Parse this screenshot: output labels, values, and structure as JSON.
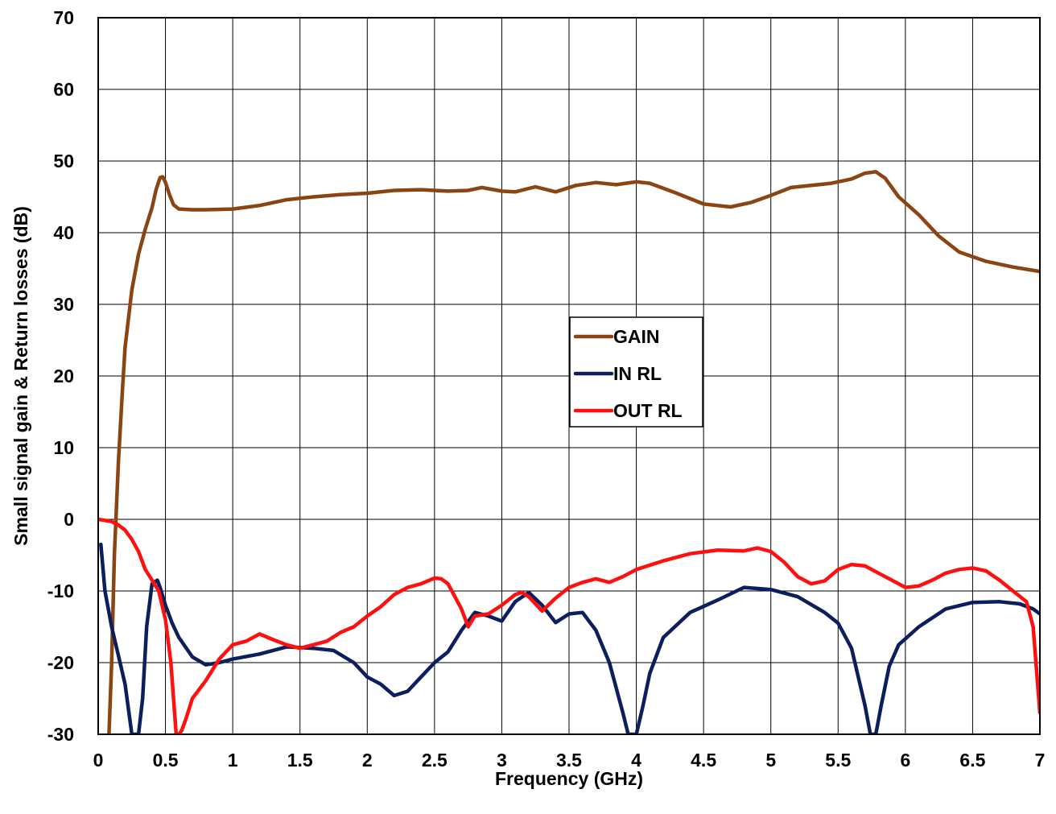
{
  "chart_data": {
    "type": "line",
    "title": "",
    "xlabel": "Frequency (GHz)",
    "ylabel": "Small signal gain & Return losses (dB)",
    "xlim": [
      0,
      7
    ],
    "ylim": [
      -30,
      70
    ],
    "x_ticks": [
      0,
      0.5,
      1,
      1.5,
      2,
      2.5,
      3,
      3.5,
      4,
      4.5,
      5,
      5.5,
      6,
      6.5,
      7
    ],
    "x_tick_labels": [
      "0",
      "0.5",
      "1",
      "1.5",
      "2",
      "2.5",
      "3",
      "3.5",
      "4",
      "4.5",
      "5",
      "5.5",
      "6",
      "6.5",
      "7"
    ],
    "y_ticks": [
      -30,
      -20,
      -10,
      0,
      10,
      20,
      30,
      40,
      50,
      60,
      70
    ],
    "y_tick_labels": [
      "-30",
      "-20",
      "-10",
      "0",
      "10",
      "20",
      "30",
      "40",
      "50",
      "60",
      "70"
    ],
    "grid": true,
    "legend_position": "center",
    "series": [
      {
        "name": "GAIN",
        "color": "#8B4513",
        "x": [
          0.08,
          0.1,
          0.12,
          0.15,
          0.18,
          0.2,
          0.25,
          0.3,
          0.35,
          0.4,
          0.43,
          0.46,
          0.48,
          0.5,
          0.53,
          0.56,
          0.6,
          0.7,
          0.8,
          1.0,
          1.2,
          1.4,
          1.6,
          1.8,
          2.0,
          2.2,
          2.4,
          2.6,
          2.75,
          2.85,
          3.0,
          3.1,
          3.25,
          3.4,
          3.55,
          3.7,
          3.85,
          4.0,
          4.1,
          4.3,
          4.5,
          4.7,
          4.85,
          5.0,
          5.15,
          5.3,
          5.45,
          5.6,
          5.7,
          5.78,
          5.85,
          5.95,
          6.1,
          6.25,
          6.4,
          6.6,
          6.8,
          7.0
        ],
        "y": [
          -30,
          -20,
          -5,
          8,
          18,
          24,
          32,
          37,
          40.5,
          43.5,
          46,
          47.7,
          47.8,
          47,
          45.3,
          43.9,
          43.3,
          43.2,
          43.2,
          43.3,
          43.8,
          44.6,
          45.0,
          45.3,
          45.5,
          45.9,
          46.0,
          45.8,
          45.9,
          46.3,
          45.8,
          45.7,
          46.4,
          45.7,
          46.6,
          47.0,
          46.7,
          47.1,
          46.9,
          45.5,
          44.0,
          43.6,
          44.2,
          45.2,
          46.3,
          46.6,
          46.9,
          47.5,
          48.3,
          48.5,
          47.6,
          45.0,
          42.5,
          39.5,
          37.3,
          36.0,
          35.2,
          34.6
        ]
      },
      {
        "name": "IN RL",
        "color": "#0B1F5C",
        "x": [
          0.02,
          0.05,
          0.1,
          0.15,
          0.2,
          0.25,
          0.28,
          0.3,
          0.33,
          0.36,
          0.4,
          0.44,
          0.46,
          0.5,
          0.55,
          0.6,
          0.7,
          0.8,
          0.9,
          1.0,
          1.2,
          1.4,
          1.6,
          1.75,
          1.9,
          2.0,
          2.1,
          2.2,
          2.3,
          2.4,
          2.5,
          2.6,
          2.7,
          2.8,
          2.9,
          3.0,
          3.1,
          3.2,
          3.3,
          3.4,
          3.5,
          3.6,
          3.7,
          3.8,
          3.9,
          3.94,
          4.0,
          4.05,
          4.1,
          4.2,
          4.4,
          4.6,
          4.8,
          5.0,
          5.2,
          5.4,
          5.5,
          5.6,
          5.7,
          5.74,
          5.78,
          5.82,
          5.88,
          5.95,
          6.1,
          6.3,
          6.5,
          6.7,
          6.85,
          6.95,
          7.0
        ],
        "y": [
          -3.5,
          -10,
          -15,
          -19,
          -23,
          -30,
          -30,
          -30,
          -25,
          -15,
          -9,
          -8.5,
          -9.5,
          -12,
          -14.5,
          -16.5,
          -19.2,
          -20.3,
          -20.0,
          -19.5,
          -18.8,
          -17.8,
          -18.0,
          -18.3,
          -20.0,
          -22.0,
          -23.0,
          -24.6,
          -24.0,
          -22.0,
          -20.0,
          -18.5,
          -15.5,
          -13.0,
          -13.5,
          -14.2,
          -11.5,
          -10.2,
          -12.0,
          -14.4,
          -13.2,
          -13.0,
          -15.5,
          -20.0,
          -27.0,
          -30,
          -30,
          -26.0,
          -21.5,
          -16.5,
          -13.0,
          -11.3,
          -9.5,
          -9.8,
          -10.8,
          -13.0,
          -14.5,
          -18.0,
          -26.0,
          -30,
          -30,
          -26.0,
          -20.5,
          -17.5,
          -15.0,
          -12.5,
          -11.6,
          -11.5,
          -11.8,
          -12.5,
          -13.2
        ]
      },
      {
        "name": "OUT RL",
        "color": "#FF1010",
        "x": [
          0.0,
          0.1,
          0.15,
          0.2,
          0.25,
          0.3,
          0.35,
          0.4,
          0.45,
          0.5,
          0.54,
          0.56,
          0.58,
          0.6,
          0.62,
          0.65,
          0.7,
          0.8,
          0.9,
          1.0,
          1.1,
          1.2,
          1.3,
          1.4,
          1.5,
          1.6,
          1.7,
          1.8,
          1.9,
          2.0,
          2.1,
          2.2,
          2.3,
          2.4,
          2.5,
          2.55,
          2.6,
          2.7,
          2.75,
          2.8,
          2.9,
          3.0,
          3.1,
          3.15,
          3.2,
          3.3,
          3.4,
          3.5,
          3.6,
          3.7,
          3.8,
          3.9,
          4.0,
          4.2,
          4.4,
          4.6,
          4.8,
          4.9,
          5.0,
          5.1,
          5.2,
          5.3,
          5.4,
          5.5,
          5.6,
          5.7,
          5.8,
          5.9,
          6.0,
          6.1,
          6.2,
          6.3,
          6.4,
          6.5,
          6.6,
          6.7,
          6.8,
          6.9,
          6.95,
          7.0
        ],
        "y": [
          0,
          -0.3,
          -0.8,
          -1.5,
          -2.8,
          -4.5,
          -7.0,
          -8.5,
          -10.0,
          -14.0,
          -20.0,
          -25.0,
          -30,
          -30,
          -29.5,
          -28.0,
          -25.0,
          -22.5,
          -19.5,
          -17.5,
          -17.0,
          -16.0,
          -16.8,
          -17.5,
          -18.0,
          -17.5,
          -17.0,
          -15.8,
          -15.0,
          -13.5,
          -12.2,
          -10.5,
          -9.5,
          -9.0,
          -8.2,
          -8.3,
          -9.0,
          -12.5,
          -15.0,
          -13.5,
          -13.2,
          -12.0,
          -10.5,
          -10.2,
          -10.8,
          -12.8,
          -11.0,
          -9.5,
          -8.8,
          -8.3,
          -8.8,
          -8.0,
          -7.0,
          -5.8,
          -4.8,
          -4.3,
          -4.4,
          -4.0,
          -4.5,
          -6.0,
          -8.0,
          -9.0,
          -8.6,
          -7.0,
          -6.3,
          -6.5,
          -7.5,
          -8.5,
          -9.5,
          -9.3,
          -8.5,
          -7.5,
          -7.0,
          -6.8,
          -7.2,
          -8.5,
          -10.0,
          -11.5,
          -15.0,
          -27.0
        ]
      }
    ]
  }
}
